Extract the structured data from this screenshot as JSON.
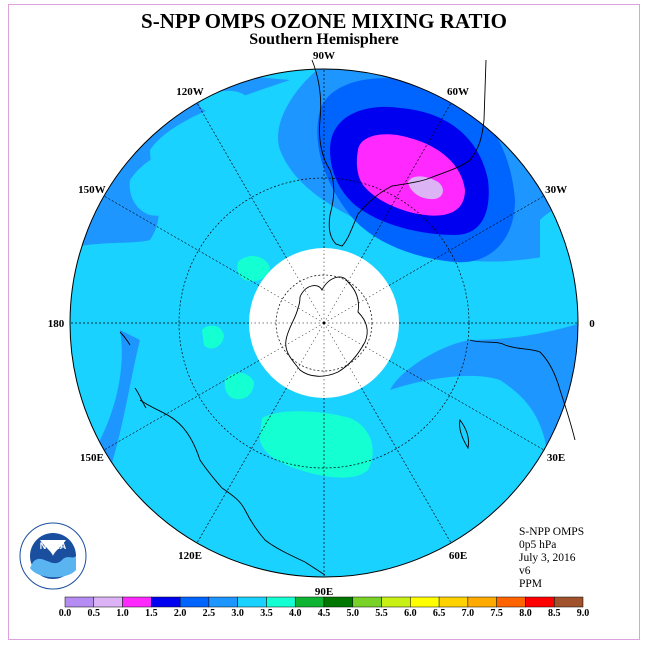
{
  "title": "S-NPP OMPS OZONE MIXING RATIO",
  "subtitle": "Southern Hemisphere",
  "longitude_labels": [
    {
      "text": "90W",
      "lon": -90
    },
    {
      "text": "60W",
      "lon": -60
    },
    {
      "text": "30W",
      "lon": -30
    },
    {
      "text": "0",
      "lon": 0
    },
    {
      "text": "30E",
      "lon": 30
    },
    {
      "text": "60E",
      "lon": 60
    },
    {
      "text": "90E",
      "lon": 90
    },
    {
      "text": "120E",
      "lon": 120
    },
    {
      "text": "150E",
      "lon": 150
    },
    {
      "text": "180",
      "lon": 180
    },
    {
      "text": "150W",
      "lon": -150
    },
    {
      "text": "120W",
      "lon": -120
    }
  ],
  "info": {
    "instrument": "S-NPP OMPS",
    "level": "0p5 hPa",
    "date": "July 3, 2016",
    "version": "v6",
    "units": "PPM"
  },
  "logo": {
    "text": "NOAA",
    "ring_text": "NATIONAL OCEANIC AND ATMOSPHERIC ADMINISTRATION U.S. DEPARTMENT OF COMMERCE"
  },
  "colorbar": {
    "labels": [
      "0.0",
      "0.5",
      "1.0",
      "1.5",
      "2.0",
      "2.5",
      "3.0",
      "3.5",
      "4.0",
      "4.5",
      "5.0",
      "5.5",
      "6.0",
      "6.5",
      "7.0",
      "7.5",
      "8.0",
      "8.5",
      "9.0"
    ],
    "colors": [
      "#b58cf2",
      "#dcb4f6",
      "#ff28ff",
      "#0000f0",
      "#0064ff",
      "#1e96ff",
      "#19d2ff",
      "#14ffd2",
      "#0fb432",
      "#007800",
      "#78d228",
      "#c8f014",
      "#ffff00",
      "#ffd200",
      "#ffaa00",
      "#ff6400",
      "#ff0000",
      "#a0522d"
    ]
  },
  "chart_data": {
    "type": "heatmap",
    "projection": "south-polar-stereographic",
    "variable": "ozone mixing ratio",
    "units": "PPM",
    "pressure_level": "0p5 hPa",
    "date": "July 3, 2016",
    "scale_min": 0.0,
    "scale_max": 9.0,
    "scale_step": 0.5,
    "background_level_ppm": "3.0-3.5",
    "polar_night_no_data": true,
    "features": [
      {
        "name": "ozone minimum core",
        "lon_center": -45,
        "lat_center": -50,
        "range_ppm": "0.5-1.0"
      },
      {
        "name": "magenta low",
        "lon_center": -45,
        "lat_center": -50,
        "range_ppm": "1.0-1.5"
      },
      {
        "name": "dark blue low",
        "lon_center": -45,
        "lat_center": -48,
        "range_ppm": "1.5-2.0"
      },
      {
        "name": "surrounding low",
        "lon_center": -50,
        "lat_center": -45,
        "range_ppm": "2.0-2.5"
      },
      {
        "name": "high patch",
        "lon_center": 100,
        "lat_center": -55,
        "range_ppm": "3.5-4.0"
      }
    ]
  }
}
